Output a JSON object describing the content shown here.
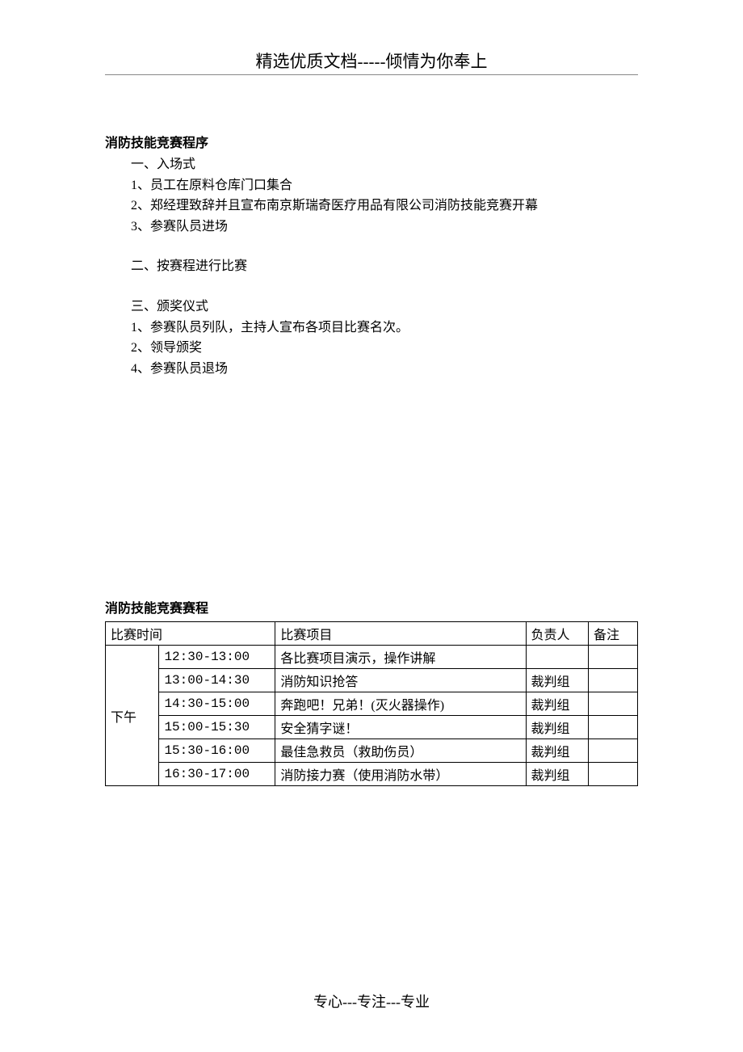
{
  "header": {
    "text": "精选优质文档-----倾情为你奉上"
  },
  "section1": {
    "title": "消防技能竞赛程序",
    "sub1_title": "一、入场式",
    "sub1_item1": "1、员工在原料仓库门口集合",
    "sub1_item2": "2、郑经理致辞并且宣布南京斯瑞奇医疗用品有限公司消防技能竞赛开幕",
    "sub1_item3": "3、参赛队员进场",
    "sub2_title": "二、按赛程进行比赛",
    "sub3_title": "三、颁奖仪式",
    "sub3_item1": "1、参赛队员列队，主持人宣布各项目比赛名次。",
    "sub3_item2": "2、领导颁奖",
    "sub3_item3": "4、参赛队员退场"
  },
  "section2": {
    "title": "消防技能竞赛赛程"
  },
  "table": {
    "header": {
      "col1": "比赛时间",
      "col2": "比赛项目",
      "col3": "负责人",
      "col4": "备注"
    },
    "period": "下午",
    "rows": [
      {
        "time": "12:30-13:00",
        "event": "各比赛项目演示，操作讲解",
        "person": "",
        "note": ""
      },
      {
        "time": "13:00-14:30",
        "event": "消防知识抢答",
        "person": "裁判组",
        "note": ""
      },
      {
        "time": "14:30-15:00",
        "event": "奔跑吧！兄弟！(灭火器操作)",
        "person": "裁判组",
        "note": ""
      },
      {
        "time": "15:00-15:30",
        "event": "安全猜字谜！",
        "person": "裁判组",
        "note": ""
      },
      {
        "time": "15:30-16:00",
        "event": "最佳急救员（救助伤员）",
        "person": "裁判组",
        "note": ""
      },
      {
        "time": "16:30-17:00",
        "event": "消防接力赛（使用消防水带）",
        "person": "裁判组",
        "note": ""
      }
    ]
  },
  "footer": {
    "text": "专心---专注---专业"
  },
  "styling": {
    "page_bg": "#ffffff",
    "text_color": "#000000",
    "border_color": "#000000",
    "underline_color": "#888888",
    "body_fontsize": 16,
    "header_fontsize": 21,
    "footer_fontsize": 18
  }
}
